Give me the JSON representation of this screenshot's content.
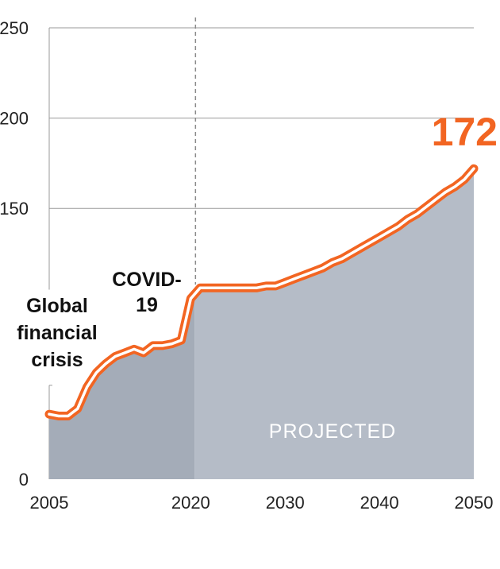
{
  "chart_data": {
    "type": "area",
    "title": "",
    "xlabel": "",
    "ylabel": "",
    "xlim": [
      2005,
      2050
    ],
    "ylim": [
      0,
      250
    ],
    "x_ticks": [
      "2005",
      "2020",
      "2030",
      "2040",
      "2050"
    ],
    "y_ticks": [
      "0",
      "150",
      "200",
      "250"
    ],
    "grid": "horizontal",
    "projection_start": 2020,
    "colors": {
      "line": "#f26522",
      "historical_fill": "#a4acb8",
      "projected_fill": "#b5bcc7",
      "projected_text": "#ffffff",
      "grid": "#9a9a9a"
    },
    "series": [
      {
        "x": [
          2005,
          2006,
          2007,
          2007.5,
          2008,
          2009,
          2010,
          2011,
          2012,
          2013,
          2014,
          2015,
          2016,
          2017,
          2018,
          2019,
          2020,
          2021,
          2022,
          2023,
          2024,
          2025,
          2026,
          2027,
          2028,
          2029,
          2030,
          2031,
          2032,
          2033,
          2034,
          2035,
          2036,
          2037,
          2038,
          2039,
          2040,
          2041,
          2042,
          2043,
          2044,
          2045,
          2046,
          2047,
          2048,
          2049,
          2050
        ],
        "values": [
          36,
          35,
          35,
          37,
          39,
          51,
          59,
          64,
          68,
          70,
          72,
          70,
          74,
          74,
          75,
          77,
          100,
          106,
          106,
          106,
          106,
          106,
          106,
          106,
          107,
          107,
          109,
          111,
          113,
          115,
          117,
          120,
          122,
          125,
          128,
          131,
          134,
          137,
          140,
          144,
          147,
          151,
          155,
          159,
          162,
          166,
          172
        ]
      }
    ],
    "end_value_label": "172",
    "annotations": [
      {
        "lines": [
          "COVID-",
          "19"
        ]
      },
      {
        "lines": [
          "Global",
          "financial",
          "crisis"
        ]
      },
      {
        "text": "PROJECTED"
      }
    ]
  }
}
